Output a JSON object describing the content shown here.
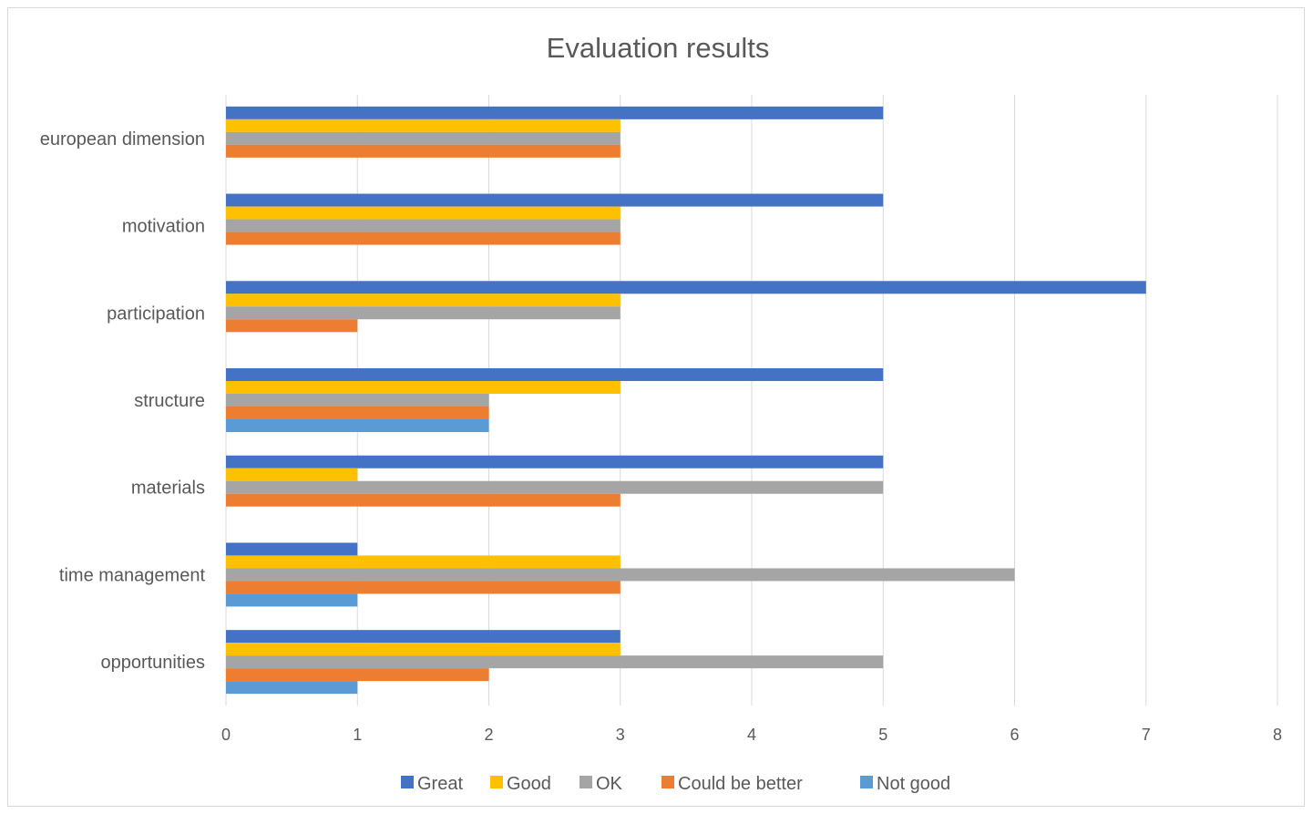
{
  "chart_data": {
    "type": "bar",
    "orientation": "horizontal",
    "title": "Evaluation results",
    "xlabel": "",
    "ylabel": "",
    "xlim": [
      0,
      8
    ],
    "ticks": [
      "0",
      "1",
      "2",
      "3",
      "4",
      "5",
      "6",
      "7",
      "8"
    ],
    "grid": true,
    "legend_position": "bottom",
    "categories": [
      "european dimension",
      "motivation",
      "participation",
      "structure",
      "materials",
      "time management",
      "opportunities"
    ],
    "series": [
      {
        "name": "Great",
        "color": "#4472C4",
        "values": [
          5,
          5,
          7,
          5,
          5,
          1,
          3
        ]
      },
      {
        "name": "Good",
        "color": "#FFC000",
        "values": [
          3,
          3,
          3,
          3,
          1,
          3,
          3
        ]
      },
      {
        "name": "OK",
        "color": "#A5A5A5",
        "values": [
          3,
          3,
          3,
          2,
          5,
          6,
          5
        ]
      },
      {
        "name": "Could be better",
        "color": "#ED7D31",
        "values": [
          3,
          3,
          1,
          2,
          3,
          3,
          2
        ]
      },
      {
        "name": "Not good",
        "color": "#5B9BD5",
        "values": [
          0,
          0,
          0,
          2,
          0,
          1,
          1
        ]
      }
    ]
  }
}
